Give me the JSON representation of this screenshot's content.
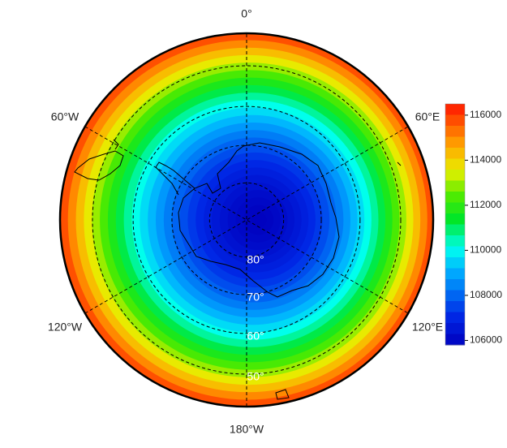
{
  "map": {
    "longitude_labels": {
      "north": "0°",
      "east": "60°E",
      "southeast": "120°E",
      "south": "180°W",
      "southwest": "120°W",
      "west": "60°W"
    },
    "latitude_labels": [
      "80°",
      "70°",
      "60°",
      "50°"
    ],
    "colorbar": {
      "range": [
        105800,
        116500
      ],
      "ticks": [
        106000,
        108000,
        110000,
        112000,
        114000,
        116000
      ]
    }
  }
}
